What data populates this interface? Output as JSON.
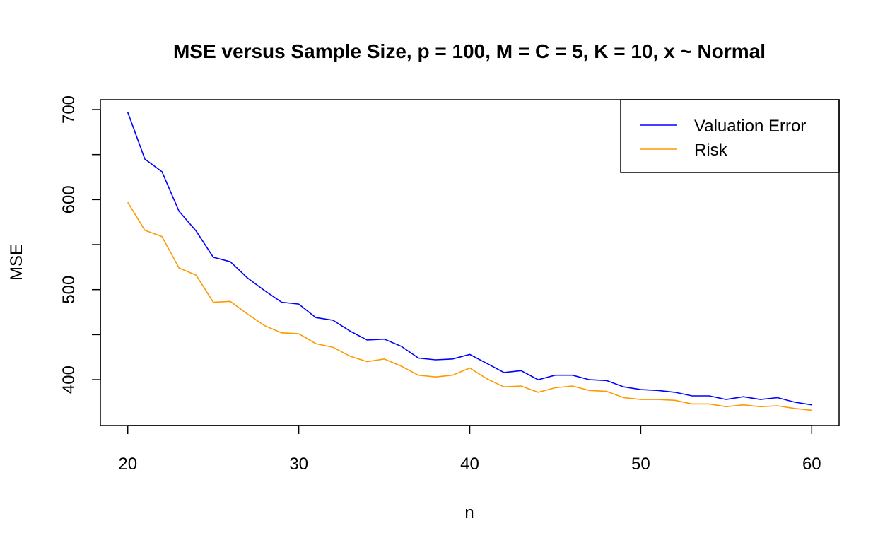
{
  "chart_data": {
    "type": "line",
    "title": "MSE versus Sample Size, p = 100, M = C = 5, K = 10, x ~ Normal",
    "xlabel": "n",
    "ylabel": "MSE",
    "xlim": [
      18.4,
      61.6
    ],
    "ylim": [
      349,
      711
    ],
    "xticks": [
      20,
      30,
      40,
      50,
      60
    ],
    "yticks": [
      400,
      500,
      600,
      700
    ],
    "yticks_unlabeled": [
      450,
      550,
      650
    ],
    "grid": false,
    "legend_position": "top-right",
    "x": [
      20,
      21,
      22,
      23,
      24,
      25,
      26,
      27,
      28,
      29,
      30,
      31,
      32,
      33,
      34,
      35,
      36,
      37,
      38,
      39,
      40,
      41,
      42,
      43,
      44,
      45,
      46,
      47,
      48,
      49,
      50,
      51,
      52,
      53,
      54,
      55,
      56,
      57,
      58,
      59,
      60
    ],
    "series": [
      {
        "name": "Valuation Error",
        "color": "#0000ff",
        "values": [
          697,
          645,
          631,
          587,
          565,
          536,
          531,
          513,
          499,
          486,
          484,
          469,
          466,
          454,
          444,
          445,
          437,
          424,
          422,
          423,
          428,
          418,
          408,
          410,
          400,
          405,
          405,
          400,
          399,
          392,
          389,
          388,
          386,
          382,
          382,
          378,
          381,
          378,
          380,
          375,
          372
        ]
      },
      {
        "name": "Risk",
        "color": "#ff9900",
        "values": [
          597,
          566,
          559,
          524,
          516,
          486,
          487,
          473,
          460,
          452,
          451,
          440,
          436,
          426,
          420,
          423,
          415,
          405,
          403,
          405,
          413,
          401,
          392,
          393,
          386,
          391,
          393,
          388,
          387,
          380,
          378,
          378,
          377,
          373,
          373,
          370,
          372,
          370,
          371,
          368,
          366
        ]
      }
    ]
  }
}
